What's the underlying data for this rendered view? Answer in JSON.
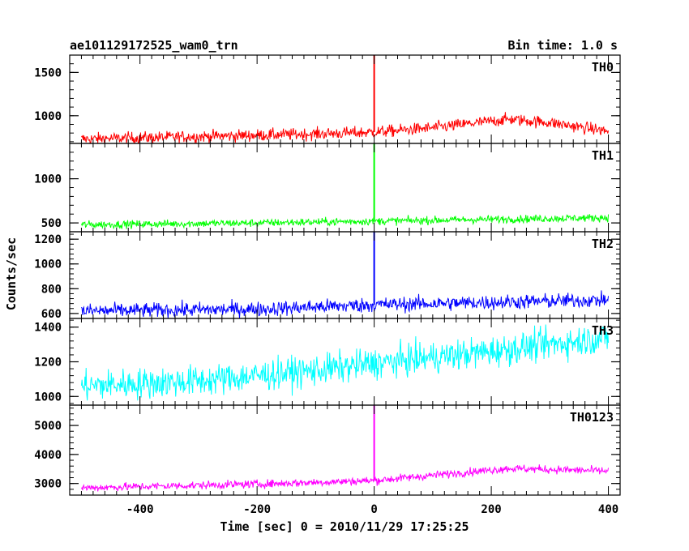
{
  "header": {
    "title": "ae101129172525_wam0_trn",
    "bin_time": "Bin time: 1.0 s"
  },
  "chart_data": {
    "type": "line",
    "title": "ae101129172525_wam0_trn",
    "xlabel": "Time [sec] 0 = 2010/11/29 17:25:25",
    "ylabel": "Counts/sec",
    "xlim": [
      -520,
      420
    ],
    "x_ticks": [
      -400,
      -200,
      0,
      200,
      400
    ],
    "panels": [
      {
        "name": "TH0",
        "color": "#ff0000",
        "ylim": [
          680,
          1700
        ],
        "y_ticks": [
          1000,
          1500
        ],
        "trend": [
          [
            -500,
            730
          ],
          [
            -300,
            760
          ],
          [
            -100,
            790
          ],
          [
            0,
            810
          ],
          [
            100,
            860
          ],
          [
            230,
            960
          ],
          [
            300,
            920
          ],
          [
            400,
            820
          ]
        ],
        "noise": 35,
        "spike": {
          "x": 0,
          "peak": 1700
        }
      },
      {
        "name": "TH1",
        "color": "#00ff00",
        "ylim": [
          400,
          1400
        ],
        "y_ticks": [
          500,
          1000
        ],
        "trend": [
          [
            -500,
            480
          ],
          [
            -200,
            500
          ],
          [
            0,
            520
          ],
          [
            200,
            540
          ],
          [
            400,
            560
          ]
        ],
        "noise": 22,
        "spike": {
          "x": 0,
          "peak": 1400
        }
      },
      {
        "name": "TH2",
        "color": "#0000ff",
        "ylim": [
          560,
          1260
        ],
        "y_ticks": [
          600,
          800,
          1000,
          1200
        ],
        "trend": [
          [
            -500,
            620
          ],
          [
            -200,
            635
          ],
          [
            0,
            670
          ],
          [
            200,
            690
          ],
          [
            400,
            710
          ]
        ],
        "noise": 30,
        "spike": {
          "x": 0,
          "peak": 1260
        }
      },
      {
        "name": "TH3",
        "color": "#00ffff",
        "ylim": [
          950,
          1450
        ],
        "y_ticks": [
          1000,
          1200,
          1400
        ],
        "trend": [
          [
            -500,
            1060
          ],
          [
            -300,
            1090
          ],
          [
            -100,
            1150
          ],
          [
            0,
            1190
          ],
          [
            200,
            1260
          ],
          [
            400,
            1340
          ]
        ],
        "noise": 45,
        "spike": null
      },
      {
        "name": "TH0123",
        "color": "#ff00ff",
        "ylim": [
          2600,
          5700
        ],
        "y_ticks": [
          3000,
          4000,
          5000
        ],
        "trend": [
          [
            -500,
            2850
          ],
          [
            -200,
            2980
          ],
          [
            0,
            3100
          ],
          [
            230,
            3520
          ],
          [
            400,
            3430
          ]
        ],
        "noise": 70,
        "spike": {
          "x": 0,
          "peak": 5700
        }
      }
    ]
  }
}
